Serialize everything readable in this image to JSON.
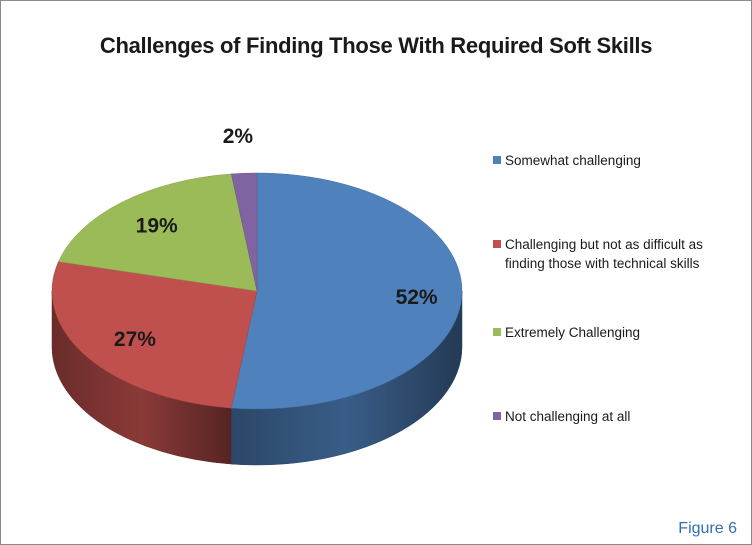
{
  "chart_data": {
    "type": "pie",
    "title": "Challenges of Finding Those With Required Soft Skills",
    "slices": [
      {
        "label": "Somewhat challenging",
        "value": 52,
        "display": "52%",
        "color": "#4f81bd"
      },
      {
        "label": "Challenging but not as difficult as finding those with technical skills",
        "value": 27,
        "display": "27%",
        "color": "#c0504d"
      },
      {
        "label": "Extremely Challenging",
        "value": 19,
        "display": "19%",
        "color": "#9bbb59"
      },
      {
        "label": "Not challenging at all",
        "value": 2,
        "display": "2%",
        "color": "#8064a2"
      }
    ],
    "legend_position": "right",
    "style": "3d"
  },
  "figure_label": "Figure 6"
}
